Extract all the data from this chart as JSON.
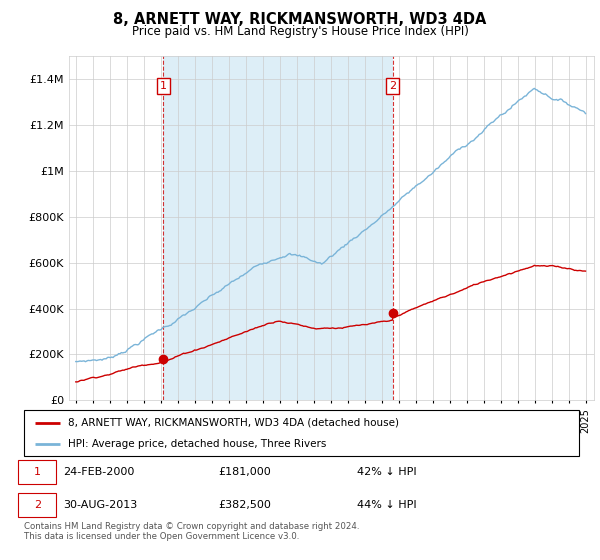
{
  "title": "8, ARNETT WAY, RICKMANSWORTH, WD3 4DA",
  "subtitle": "Price paid vs. HM Land Registry's House Price Index (HPI)",
  "ylim": [
    0,
    1500000
  ],
  "yticks": [
    0,
    200000,
    400000,
    600000,
    800000,
    1000000,
    1200000,
    1400000
  ],
  "ytick_labels": [
    "£0",
    "£200K",
    "£400K",
    "£600K",
    "£800K",
    "£1M",
    "£1.2M",
    "£1.4M"
  ],
  "background_color": "#ffffff",
  "grid_color": "#cccccc",
  "hpi_color": "#7ab4d8",
  "hpi_fill_color": "#ddeef7",
  "price_color": "#cc0000",
  "sale1_date": 2000.15,
  "sale1_price": 181000,
  "sale2_date": 2013.66,
  "sale2_price": 382500,
  "vline_color": "#cc0000",
  "legend_line1": "8, ARNETT WAY, RICKMANSWORTH, WD3 4DA (detached house)",
  "legend_line2": "HPI: Average price, detached house, Three Rivers",
  "copyright": "Contains HM Land Registry data © Crown copyright and database right 2024.\nThis data is licensed under the Open Government Licence v3.0."
}
